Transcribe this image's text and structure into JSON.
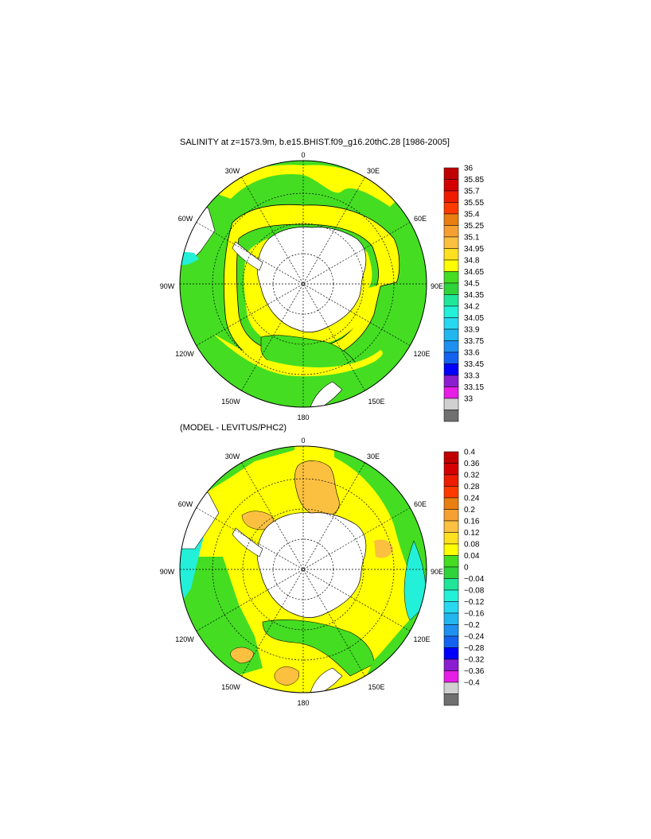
{
  "panels": [
    {
      "title": "SALINITY at z=1573.9m, b.e15.BHIST.f09_g16.20thC.28 [1986-2005]",
      "colorbar_labels": [
        "36",
        "35.85",
        "35.7",
        "35.55",
        "35.4",
        "35.25",
        "35.1",
        "34.95",
        "34.8",
        "34.65",
        "34.5",
        "34.35",
        "34.2",
        "34.05",
        "33.9",
        "33.75",
        "33.6",
        "33.45",
        "33.3",
        "33.15",
        "33"
      ]
    },
    {
      "title": "(MODEL - LEVITUS/PHC2)",
      "colorbar_labels": [
        "0.4",
        "0.36",
        "0.32",
        "0.28",
        "0.24",
        "0.2",
        "0.16",
        "0.12",
        "0.08",
        "0.04",
        "0",
        "−0.04",
        "−0.08",
        "−0.12",
        "−0.16",
        "−0.2",
        "−0.24",
        "−0.28",
        "−0.32",
        "−0.36",
        "−0.4"
      ]
    }
  ],
  "longitude_labels": [
    "0",
    "30E",
    "60E",
    "90E",
    "120E",
    "150E",
    "180",
    "150W",
    "120W",
    "90W",
    "60W",
    "30W"
  ],
  "colors": {
    "colorbar": [
      "#c00000",
      "#d40000",
      "#ee1c00",
      "#ff3a00",
      "#e87f10",
      "#f5a030",
      "#fbc040",
      "#ffe020",
      "#ffff00",
      "#44dd22",
      "#2fd33a",
      "#20e69a",
      "#22f0d8",
      "#28d8f0",
      "#22b6ee",
      "#1e90f0",
      "#1462f0",
      "#0000ff",
      "#8a1ed0",
      "#e61ee6",
      "#d0d0d0",
      "#707070"
    ],
    "land": "#ffffff",
    "yellow": "#ffff00",
    "green": "#44dd22",
    "orange": "#fbc040",
    "cyan": "#22f0d8"
  }
}
